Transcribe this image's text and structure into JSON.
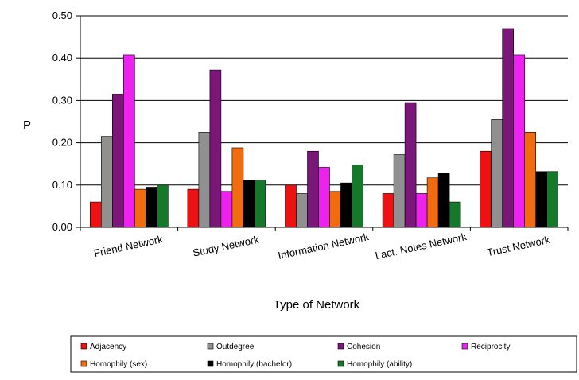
{
  "chart_data": {
    "type": "bar",
    "xlabel": "Type of Network",
    "ylabel": "P",
    "ylim": [
      0,
      0.5
    ],
    "yticks": [
      "0.00",
      "0.10",
      "0.20",
      "0.30",
      "0.40",
      "0.50"
    ],
    "grid": true,
    "legend_position": "bottom",
    "categories": [
      "Friend Network",
      "Study Network",
      "Information Network",
      "Lact. Notes Network",
      "Trust Network"
    ],
    "series": [
      {
        "name": "Adjacency",
        "color": "#ee1111",
        "values": [
          0.06,
          0.09,
          0.1,
          0.08,
          0.18
        ]
      },
      {
        "name": "Outdegree",
        "color": "#909090",
        "values": [
          0.215,
          0.225,
          0.08,
          0.172,
          0.255
        ]
      },
      {
        "name": "Cohesion",
        "color": "#7a1778",
        "values": [
          0.315,
          0.372,
          0.18,
          0.295,
          0.47
        ]
      },
      {
        "name": "Reciprocity",
        "color": "#ee22ee",
        "values": [
          0.408,
          0.085,
          0.142,
          0.08,
          0.408
        ]
      },
      {
        "name": "Homophily (sex)",
        "color": "#f26b0f",
        "values": [
          0.09,
          0.188,
          0.085,
          0.117,
          0.225
        ]
      },
      {
        "name": "Homophily (bachelor)",
        "color": "#000000",
        "values": [
          0.095,
          0.112,
          0.105,
          0.128,
          0.132
        ]
      },
      {
        "name": "Homophily (ability)",
        "color": "#147a2a",
        "values": [
          0.1,
          0.112,
          0.148,
          0.06,
          0.132
        ]
      }
    ]
  }
}
